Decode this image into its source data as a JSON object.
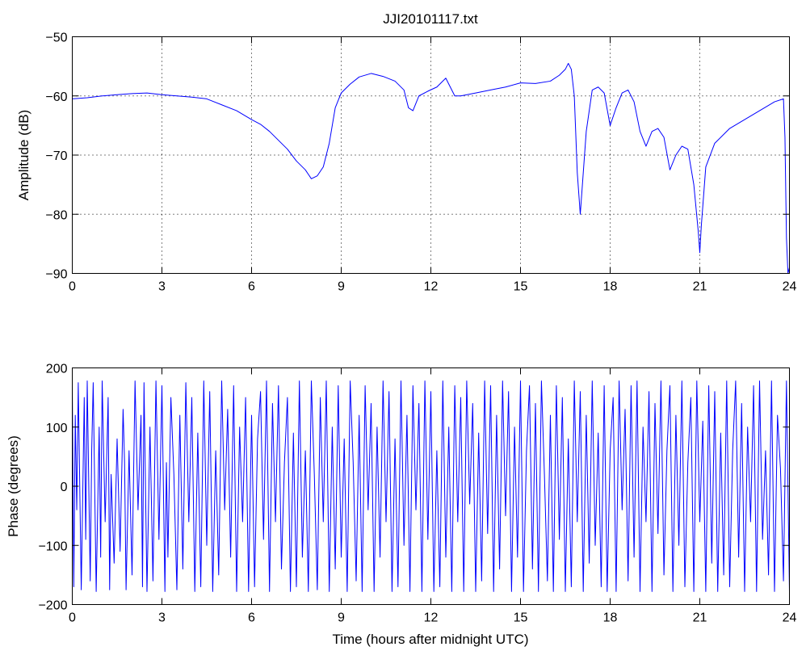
{
  "figure": {
    "title": "JJI20101117.txt"
  },
  "chart_data": [
    {
      "type": "line",
      "title": "JJI20101117.txt",
      "xlabel": "",
      "ylabel": "Amplitude (dB)",
      "xlim": [
        0,
        24
      ],
      "ylim": [
        -90,
        -50
      ],
      "xticks": [
        0,
        3,
        6,
        9,
        12,
        15,
        18,
        21,
        24
      ],
      "yticks": [
        -90,
        -80,
        -70,
        -60,
        -50
      ],
      "xtick_labels": [
        "0",
        "3",
        "6",
        "9",
        "12",
        "15",
        "18",
        "21",
        "24"
      ],
      "ytick_labels": [
        "−90",
        "−80",
        "−70",
        "−60",
        "−50"
      ],
      "grid": true,
      "color": "#0000ff",
      "series": [
        {
          "x": [
            0,
            0.5,
            1,
            1.5,
            2,
            2.5,
            3,
            3.5,
            4,
            4.5,
            5,
            5.5,
            6,
            6.3,
            6.6,
            6.9,
            7.2,
            7.5,
            7.8,
            8.0,
            8.2,
            8.4,
            8.6,
            8.8,
            9.0,
            9.3,
            9.6,
            10.0,
            10.4,
            10.8,
            11.1,
            11.25,
            11.4,
            11.6,
            11.9,
            12.2,
            12.5,
            12.6,
            12.8,
            13.0,
            13.5,
            14.0,
            14.5,
            15.0,
            15.5,
            16.0,
            16.3,
            16.5,
            16.6,
            16.7,
            16.8,
            16.9,
            17.0,
            17.2,
            17.4,
            17.6,
            17.8,
            18.0,
            18.2,
            18.4,
            18.6,
            18.8,
            19.0,
            19.2,
            19.4,
            19.6,
            19.8,
            20.0,
            20.2,
            20.4,
            20.6,
            20.8,
            20.95,
            21.0,
            21.05,
            21.2,
            21.5,
            22.0,
            22.5,
            23.0,
            23.5,
            23.8,
            23.85,
            23.9,
            23.95,
            24.0
          ],
          "y": [
            -60.5,
            -60.3,
            -60,
            -59.8,
            -59.6,
            -59.5,
            -59.8,
            -60,
            -60.2,
            -60.5,
            -61.5,
            -62.5,
            -64,
            -64.8,
            -66,
            -67.5,
            -69,
            -71,
            -72.5,
            -74,
            -73.5,
            -72,
            -68,
            -62,
            -59.5,
            -58,
            -56.8,
            -56.2,
            -56.7,
            -57.5,
            -59,
            -62,
            -62.5,
            -60,
            -59.2,
            -58.5,
            -57,
            -58,
            -60,
            -60,
            -59.5,
            -59,
            -58.5,
            -57.8,
            -57.9,
            -57.5,
            -56.5,
            -55.5,
            -54.5,
            -55.5,
            -60,
            -73,
            -80,
            -66,
            -59,
            -58.5,
            -59.5,
            -65,
            -62,
            -59.5,
            -59,
            -61,
            -66,
            -68.5,
            -66,
            -65.5,
            -67,
            -72.5,
            -70,
            -68.5,
            -69,
            -75,
            -83,
            -86.5,
            -82,
            -72,
            -68,
            -65.5,
            -64,
            -62.5,
            -61,
            -60.5,
            -67,
            -84,
            -90,
            -89
          ]
        }
      ]
    },
    {
      "type": "line",
      "title": "",
      "xlabel": "Time (hours after midnight UTC)",
      "ylabel": "Phase (degrees)",
      "xlim": [
        0,
        24
      ],
      "ylim": [
        -200,
        200
      ],
      "xticks": [
        0,
        3,
        6,
        9,
        12,
        15,
        18,
        21,
        24
      ],
      "yticks": [
        -200,
        -100,
        0,
        100,
        200
      ],
      "xtick_labels": [
        "0",
        "3",
        "6",
        "9",
        "12",
        "15",
        "18",
        "21",
        "24"
      ],
      "ytick_labels": [
        "−200",
        "−100",
        "0",
        "100",
        "200"
      ],
      "grid": false,
      "color": "#0000ff",
      "series": [
        {
          "x": [
            0,
            0.05,
            0.1,
            0.15,
            0.2,
            0.3,
            0.4,
            0.45,
            0.5,
            0.6,
            0.65,
            0.7,
            0.8,
            0.9,
            0.95,
            1.0,
            1.1,
            1.2,
            1.25,
            1.3,
            1.4,
            1.5,
            1.6,
            1.7,
            1.75,
            1.8,
            1.9,
            2.0,
            2.1,
            2.2,
            2.3,
            2.35,
            2.4,
            2.5,
            2.6,
            2.7,
            2.8,
            2.9,
            3.0,
            3.1,
            3.15,
            3.2,
            3.3,
            3.4,
            3.5,
            3.6,
            3.7,
            3.8,
            3.9,
            4.0,
            4.1,
            4.2,
            4.3,
            4.4,
            4.5,
            4.6,
            4.7,
            4.8,
            4.9,
            5.0,
            5.1,
            5.2,
            5.3,
            5.4,
            5.5,
            5.6,
            5.7,
            5.8,
            5.9,
            6.0,
            6.1,
            6.2,
            6.3,
            6.4,
            6.5,
            6.6,
            6.7,
            6.8,
            6.9,
            7.0,
            7.1,
            7.2,
            7.3,
            7.4,
            7.5,
            7.6,
            7.7,
            7.8,
            7.9,
            8.0,
            8.1,
            8.2,
            8.3,
            8.4,
            8.5,
            8.6,
            8.7,
            8.8,
            8.9,
            9.0,
            9.1,
            9.2,
            9.3,
            9.4,
            9.5,
            9.6,
            9.7,
            9.8,
            9.9,
            10.0,
            10.1,
            10.2,
            10.3,
            10.4,
            10.5,
            10.6,
            10.7,
            10.8,
            10.9,
            11.0,
            11.1,
            11.2,
            11.3,
            11.4,
            11.5,
            11.6,
            11.7,
            11.8,
            11.9,
            12.0,
            12.1,
            12.2,
            12.3,
            12.4,
            12.5,
            12.6,
            12.7,
            12.8,
            12.9,
            13.0,
            13.1,
            13.2,
            13.3,
            13.4,
            13.5,
            13.6,
            13.7,
            13.8,
            13.9,
            14.0,
            14.1,
            14.2,
            14.3,
            14.4,
            14.5,
            14.6,
            14.7,
            14.8,
            14.9,
            15.0,
            15.1,
            15.2,
            15.3,
            15.4,
            15.5,
            15.6,
            15.7,
            15.8,
            15.9,
            16.0,
            16.1,
            16.2,
            16.3,
            16.4,
            16.5,
            16.6,
            16.7,
            16.8,
            16.9,
            17.0,
            17.1,
            17.2,
            17.3,
            17.4,
            17.5,
            17.6,
            17.7,
            17.8,
            17.9,
            18.0,
            18.1,
            18.2,
            18.3,
            18.4,
            18.5,
            18.6,
            18.7,
            18.8,
            18.9,
            19.0,
            19.1,
            19.2,
            19.3,
            19.4,
            19.5,
            19.6,
            19.7,
            19.8,
            19.9,
            20.0,
            20.1,
            20.2,
            20.3,
            20.4,
            20.5,
            20.6,
            20.7,
            20.8,
            20.9,
            21.0,
            21.1,
            21.2,
            21.3,
            21.4,
            21.5,
            21.6,
            21.7,
            21.8,
            21.9,
            22.0,
            22.1,
            22.2,
            22.3,
            22.4,
            22.5,
            22.6,
            22.7,
            22.8,
            22.9,
            23.0,
            23.1,
            23.2,
            23.3,
            23.4,
            23.5,
            23.6,
            23.7,
            23.8,
            23.9,
            24.0
          ],
          "y": [
            170,
            -170,
            120,
            -40,
            175,
            -175,
            150,
            -90,
            178,
            -160,
            60,
            175,
            -178,
            100,
            -120,
            178,
            -60,
            150,
            -175,
            20,
            -130,
            80,
            -110,
            130,
            40,
            -175,
            60,
            -150,
            178,
            -40,
            120,
            -170,
            175,
            -178,
            100,
            -160,
            178,
            -90,
            170,
            -178,
            40,
            -120,
            150,
            20,
            -175,
            120,
            -140,
            175,
            -60,
            150,
            -178,
            90,
            -170,
            178,
            -100,
            160,
            -178,
            60,
            -150,
            178,
            -40,
            130,
            -120,
            170,
            -178,
            100,
            -60,
            150,
            -178,
            120,
            -170,
            80,
            160,
            -90,
            178,
            -178,
            140,
            -60,
            170,
            -140,
            40,
            150,
            -178,
            90,
            -170,
            178,
            -120,
            60,
            -178,
            178,
            20,
            -175,
            150,
            -60,
            178,
            -178,
            100,
            -140,
            170,
            -120,
            80,
            -178,
            178,
            40,
            -160,
            120,
            -178,
            170,
            -40,
            140,
            -178,
            100,
            -120,
            178,
            -60,
            160,
            -178,
            80,
            -170,
            178,
            -100,
            120,
            -178,
            170,
            -40,
            140,
            -178,
            178,
            -90,
            160,
            -178,
            60,
            -170,
            178,
            -120,
            100,
            -178,
            170,
            -60,
            150,
            -178,
            178,
            -30,
            140,
            -178,
            90,
            -160,
            178,
            -80,
            170,
            -178,
            120,
            -140,
            178,
            -50,
            160,
            -178,
            100,
            -120,
            178,
            -178,
            60,
            170,
            -140,
            140,
            -178,
            178,
            20,
            -160,
            120,
            -178,
            170,
            -90,
            150,
            -178,
            80,
            -170,
            178,
            -60,
            160,
            -178,
            120,
            -130,
            178,
            -100,
            90,
            -170,
            170,
            -178,
            60,
            150,
            -178,
            178,
            -40,
            130,
            -160,
            170,
            -120,
            178,
            -178,
            100,
            -60,
            160,
            -178,
            140,
            -80,
            178,
            -150,
            60,
            170,
            -178,
            120,
            -100,
            178,
            -170,
            40,
            150,
            -178,
            178,
            -60,
            110,
            -178,
            170,
            -130,
            160,
            -178,
            90,
            -150,
            178,
            -170,
            60,
            178,
            -120,
            140,
            -178,
            100,
            -60,
            170,
            -178,
            178,
            -90,
            60,
            -150,
            178,
            -178,
            120,
            30,
            -160,
            178,
            -178
          ]
        }
      ]
    }
  ]
}
